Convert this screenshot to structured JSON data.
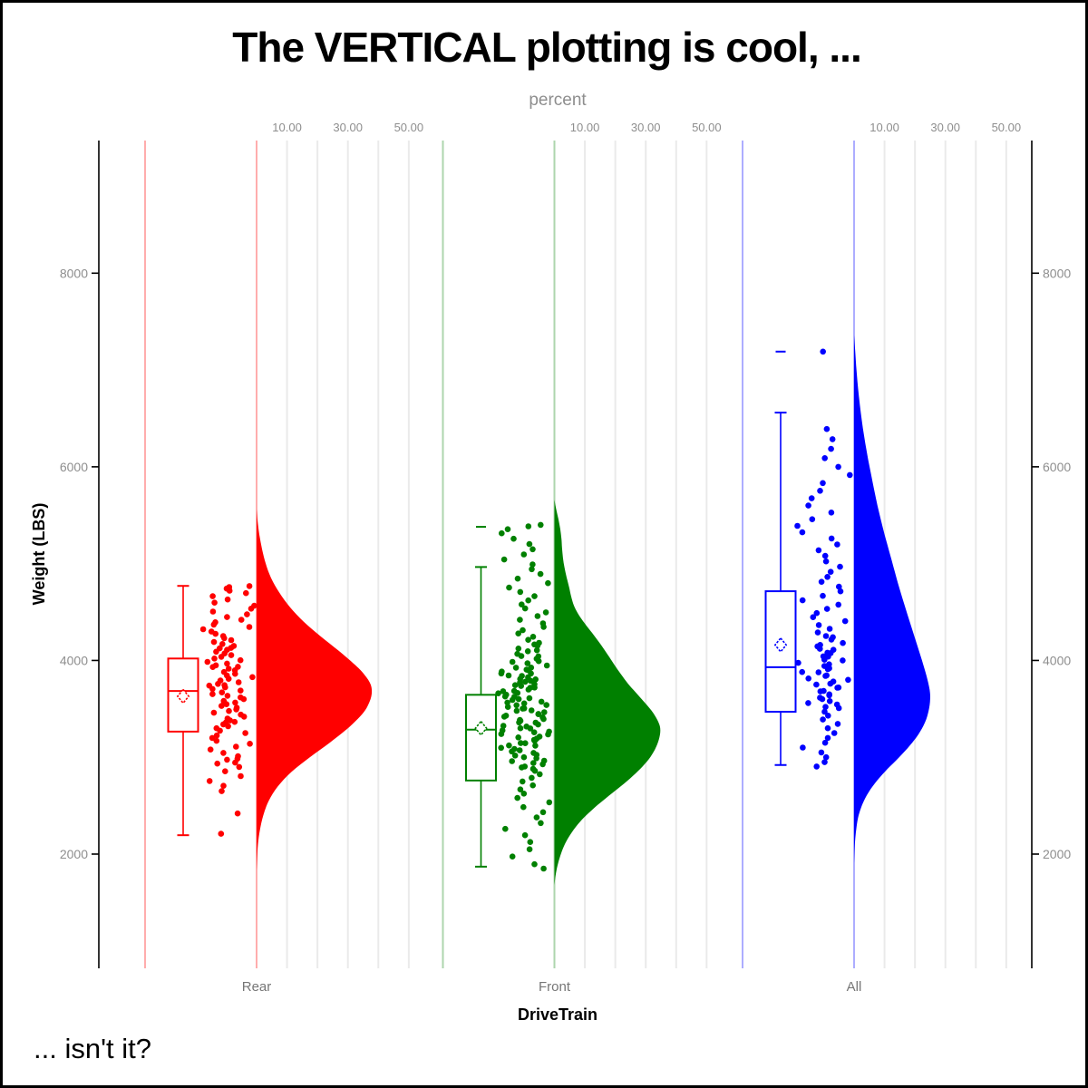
{
  "chart_data": {
    "type": "raincloud",
    "title": "The VERTICAL plotting is cool, ...",
    "footnote": "... isn't it?",
    "x_axis": {
      "label": "DriveTrain",
      "categories": [
        "Rear",
        "Front",
        "All"
      ]
    },
    "y_axis": {
      "label": "Weight (LBS)",
      "ticks": [
        2000,
        4000,
        6000,
        8000
      ],
      "tick_labels": [
        "2000",
        "4000",
        "6000",
        "8000"
      ],
      "range": [
        820,
        9370
      ],
      "mirrored_right": true
    },
    "percent_axis": {
      "label": "percent",
      "gridline_ticks": [
        10,
        20,
        30,
        40,
        50
      ],
      "labeled_ticks": [
        10,
        30,
        50
      ],
      "tick_labels": [
        "10.00",
        "30.00",
        "50.00"
      ]
    },
    "style": {
      "grid_color": "#EAEAEA",
      "axis_color": "#000000",
      "gray_text": "#8E8E8E",
      "category_text": "#767676",
      "band_line_alpha": 0.32
    },
    "groups": [
      {
        "name": "Rear",
        "color": "#FF0000",
        "box": {
          "whisker_low": 2195,
          "q1": 3265,
          "median": 3685,
          "mean": 3630,
          "q3": 4020,
          "whisker_high": 4770,
          "outliers": []
        },
        "violin": [
          [
            5560,
            0
          ],
          [
            5450,
            0.3
          ],
          [
            5300,
            0.9
          ],
          [
            5150,
            1.8
          ],
          [
            5000,
            3
          ],
          [
            4850,
            4.8
          ],
          [
            4700,
            7.5
          ],
          [
            4550,
            11
          ],
          [
            4400,
            15.5
          ],
          [
            4250,
            21
          ],
          [
            4100,
            27
          ],
          [
            3950,
            32.5
          ],
          [
            3850,
            35.5
          ],
          [
            3750,
            37.5
          ],
          [
            3650,
            37.8
          ],
          [
            3550,
            36.8
          ],
          [
            3450,
            34.8
          ],
          [
            3300,
            30
          ],
          [
            3150,
            24
          ],
          [
            3000,
            17.5
          ],
          [
            2850,
            11.5
          ],
          [
            2700,
            7
          ],
          [
            2550,
            4
          ],
          [
            2400,
            2.2
          ],
          [
            2250,
            1.1
          ],
          [
            2100,
            0.45
          ],
          [
            1950,
            0.15
          ],
          [
            1830,
            0
          ]
        ],
        "points": [
          2210,
          2420,
          2650,
          2705,
          2755,
          2805,
          2855,
          2900,
          2945,
          2985,
          2935,
          2975,
          3010,
          3045,
          3080,
          3110,
          3140,
          3170,
          3200,
          3225,
          3250,
          3275,
          3300,
          3320,
          3340,
          3360,
          3380,
          3400,
          3420,
          3440,
          3460,
          3478,
          3495,
          3512,
          3530,
          3548,
          3565,
          3582,
          3600,
          3618,
          3635,
          3652,
          3670,
          3688,
          3705,
          3722,
          3740,
          3758,
          3775,
          3792,
          3810,
          3828,
          3845,
          3862,
          3880,
          3898,
          3915,
          3932,
          3950,
          3968,
          3985,
          4002,
          4020,
          4038,
          4055,
          4072,
          4090,
          4110,
          4130,
          4150,
          4170,
          4190,
          4210,
          4230,
          4252,
          4275,
          4298,
          4322,
          4346,
          4370,
          4395,
          4420,
          4448,
          4476,
          4505,
          4535,
          4565,
          4597,
          4630,
          4663,
          4695,
          4720,
          4742,
          4758,
          4768,
          3365,
          3555,
          3745,
          3935,
          4125
        ]
      },
      {
        "name": "Front",
        "color": "#008000",
        "box": {
          "whisker_low": 1870,
          "q1": 2760,
          "median": 3285,
          "mean": 3300,
          "q3": 3645,
          "whisker_high": 4965,
          "outliers": [
            5380
          ]
        },
        "violin": [
          [
            5660,
            0
          ],
          [
            5560,
            0.6
          ],
          [
            5460,
            1.3
          ],
          [
            5360,
            1.9
          ],
          [
            5260,
            2.3
          ],
          [
            5160,
            2.5
          ],
          [
            5060,
            2.8
          ],
          [
            4960,
            3.3
          ],
          [
            4860,
            4
          ],
          [
            4760,
            4.8
          ],
          [
            4660,
            5.5
          ],
          [
            4560,
            6.5
          ],
          [
            4460,
            8.2
          ],
          [
            4360,
            10.5
          ],
          [
            4260,
            13
          ],
          [
            4160,
            15.3
          ],
          [
            4060,
            17.5
          ],
          [
            3960,
            19.6
          ],
          [
            3860,
            21.8
          ],
          [
            3760,
            24.2
          ],
          [
            3660,
            27
          ],
          [
            3560,
            29.8
          ],
          [
            3460,
            32.4
          ],
          [
            3360,
            34.2
          ],
          [
            3280,
            34.8
          ],
          [
            3180,
            34.3
          ],
          [
            3080,
            33
          ],
          [
            2980,
            31
          ],
          [
            2880,
            28.2
          ],
          [
            2780,
            24.8
          ],
          [
            2680,
            21
          ],
          [
            2580,
            17
          ],
          [
            2480,
            13.2
          ],
          [
            2380,
            9.8
          ],
          [
            2280,
            7
          ],
          [
            2180,
            4.8
          ],
          [
            2080,
            3.1
          ],
          [
            1980,
            1.9
          ],
          [
            1880,
            1
          ],
          [
            1780,
            0.4
          ],
          [
            1680,
            0
          ]
        ],
        "points": [
          1850,
          1895,
          1975,
          2050,
          2125,
          2195,
          2260,
          2320,
          2378,
          2433,
          2485,
          2535,
          2580,
          2625,
          2668,
          2710,
          2750,
          2788,
          2825,
          2860,
          2895,
          2928,
          2960,
          2990,
          3018,
          3045,
          3072,
          3098,
          3122,
          3146,
          3170,
          3192,
          3214,
          3236,
          3258,
          3278,
          3298,
          3318,
          3338,
          3358,
          3376,
          3394,
          3412,
          3430,
          3448,
          3466,
          3484,
          3502,
          3520,
          3538,
          3556,
          3574,
          3592,
          3610,
          3628,
          3646,
          3664,
          3682,
          3700,
          3718,
          3736,
          3754,
          3772,
          3790,
          3808,
          3826,
          3845,
          3865,
          3885,
          3905,
          3926,
          3948,
          3970,
          3993,
          4017,
          4042,
          4068,
          4095,
          4123,
          4152,
          4182,
          4213,
          4245,
          4278,
          4312,
          4347,
          4383,
          4420,
          4458,
          4497,
          4537,
          4578,
          4620,
          4663,
          4707,
          4752,
          4798,
          4845,
          4893,
          4942,
          4992,
          5043,
          5095,
          5148,
          5202,
          5257,
          5313,
          5355,
          5385,
          5400,
          2880,
          2940,
          3000,
          3060,
          3120,
          3180,
          3240,
          3300,
          3360,
          3420,
          3480,
          3540,
          3600,
          3660,
          3720,
          3780,
          3840,
          3900,
          2905,
          2965,
          3025,
          3085,
          3145,
          3205,
          3265,
          3325,
          3385,
          3445,
          3505,
          3565,
          3625,
          3685,
          3745,
          3805,
          3865,
          3925,
          3985,
          4045,
          4105,
          4165
        ]
      },
      {
        "name": "All",
        "color": "#0000FF",
        "box": {
          "whisker_low": 2920,
          "q1": 3470,
          "median": 3930,
          "mean": 4160,
          "q3": 4715,
          "whisker_high": 6560,
          "outliers": [
            7190
          ]
        },
        "violin": [
          [
            7360,
            0
          ],
          [
            7200,
            0.35
          ],
          [
            7040,
            0.7
          ],
          [
            6880,
            1.1
          ],
          [
            6720,
            1.6
          ],
          [
            6560,
            2.2
          ],
          [
            6400,
            2.9
          ],
          [
            6240,
            3.7
          ],
          [
            6080,
            4.6
          ],
          [
            5920,
            5.6
          ],
          [
            5760,
            6.6
          ],
          [
            5600,
            7.7
          ],
          [
            5440,
            8.9
          ],
          [
            5280,
            10.2
          ],
          [
            5120,
            11.6
          ],
          [
            4960,
            13
          ],
          [
            4800,
            14.4
          ],
          [
            4640,
            15.9
          ],
          [
            4480,
            17.5
          ],
          [
            4320,
            19.1
          ],
          [
            4160,
            20.7
          ],
          [
            4000,
            22.3
          ],
          [
            3840,
            23.8
          ],
          [
            3700,
            24.8
          ],
          [
            3600,
            25
          ],
          [
            3480,
            24.5
          ],
          [
            3360,
            23.3
          ],
          [
            3240,
            21.2
          ],
          [
            3120,
            18.3
          ],
          [
            3000,
            14.8
          ],
          [
            2880,
            11
          ],
          [
            2760,
            7.6
          ],
          [
            2640,
            4.8
          ],
          [
            2520,
            2.8
          ],
          [
            2400,
            1.5
          ],
          [
            2280,
            0.8
          ],
          [
            2160,
            0.4
          ],
          [
            2040,
            0.15
          ],
          [
            1900,
            0
          ]
        ],
        "points": [
          2905,
          2950,
          3000,
          3050,
          3100,
          3150,
          3200,
          3250,
          3300,
          3345,
          3390,
          3430,
          3470,
          3508,
          3545,
          3580,
          3615,
          3650,
          3685,
          3718,
          3750,
          3782,
          3814,
          3846,
          3878,
          3910,
          3942,
          3975,
          4008,
          4042,
          4076,
          4110,
          4145,
          4180,
          4216,
          4252,
          4289,
          4327,
          4366,
          4406,
          4447,
          4489,
          4532,
          4576,
          4621,
          4667,
          4714,
          4762,
          4812,
          4863,
          4915,
          4968,
          5023,
          5080,
          5138,
          5198,
          5260,
          5324,
          5390,
          5458,
          5528,
          5600,
          5675,
          5752,
          5832,
          5915,
          6000,
          6090,
          6185,
          6285,
          6390,
          7190,
          3560,
          3640,
          3720,
          3800,
          3880,
          3960,
          4040,
          4120,
          3520,
          3600,
          3680,
          3760,
          3840,
          3920,
          4000,
          4080,
          4160,
          4240
        ]
      }
    ]
  }
}
